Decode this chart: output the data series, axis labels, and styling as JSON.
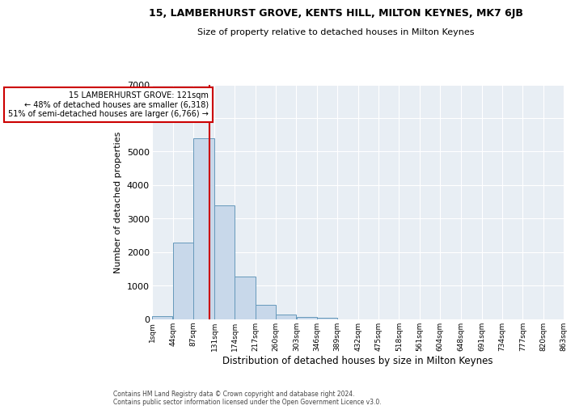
{
  "title": "15, LAMBERHURST GROVE, KENTS HILL, MILTON KEYNES, MK7 6JB",
  "subtitle": "Size of property relative to detached houses in Milton Keynes",
  "xlabel": "Distribution of detached houses by size in Milton Keynes",
  "ylabel": "Number of detached properties",
  "footer_line1": "Contains HM Land Registry data © Crown copyright and database right 2024.",
  "footer_line2": "Contains public sector information licensed under the Open Government Licence v3.0.",
  "annotation_line1": "15 LAMBERHURST GROVE: 121sqm",
  "annotation_line2": "← 48% of detached houses are smaller (6,318)",
  "annotation_line3": "51% of semi-detached houses are larger (6,766) →",
  "property_size_sqm": 121,
  "bin_edges": [
    1,
    44,
    87,
    131,
    174,
    217,
    260,
    303,
    346,
    389,
    432,
    475,
    518,
    561,
    604,
    648,
    691,
    734,
    777,
    820,
    863
  ],
  "bar_heights": [
    75,
    2270,
    5400,
    3400,
    1270,
    420,
    130,
    55,
    25,
    0,
    0,
    0,
    0,
    0,
    0,
    0,
    0,
    0,
    0,
    0
  ],
  "bar_color": "#c8d8ea",
  "bar_edge_color": "#6699bb",
  "red_line_color": "#cc0000",
  "annotation_box_edgecolor": "#cc0000",
  "background_color": "#e8eef4",
  "grid_color": "#ffffff",
  "ylim": [
    0,
    7000
  ],
  "yticks": [
    0,
    1000,
    2000,
    3000,
    4000,
    5000,
    6000,
    7000
  ],
  "tick_labels": [
    "1sqm",
    "44sqm",
    "87sqm",
    "131sqm",
    "174sqm",
    "217sqm",
    "260sqm",
    "303sqm",
    "346sqm",
    "389sqm",
    "432sqm",
    "475sqm",
    "518sqm",
    "561sqm",
    "604sqm",
    "648sqm",
    "691sqm",
    "734sqm",
    "777sqm",
    "820sqm",
    "863sqm"
  ]
}
